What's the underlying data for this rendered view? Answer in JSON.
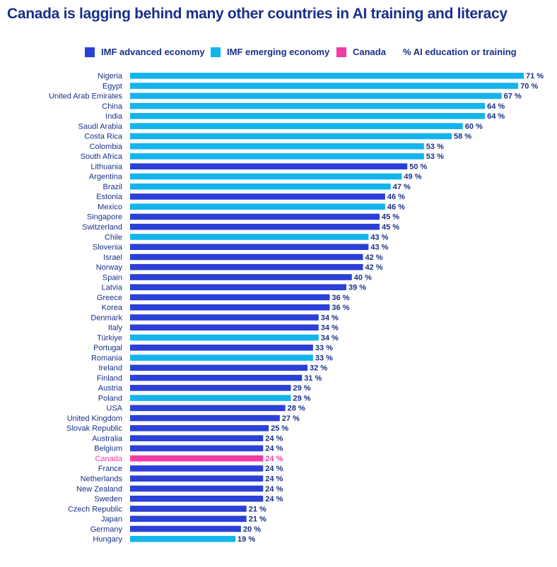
{
  "title": "Canada is lagging behind many other countries in AI training and literacy",
  "legend": [
    {
      "label": "IMF advanced economy",
      "color": "#2b40d6"
    },
    {
      "label": "IMF emerging economy",
      "color": "#13b4ec"
    },
    {
      "label": "Canada",
      "color": "#f43aa3"
    },
    {
      "label": "% AI education or training"
    }
  ],
  "chart_data": {
    "type": "bar",
    "orientation": "horizontal",
    "unit": "%",
    "xlim": [
      0,
      71
    ],
    "grid": false,
    "legend_position": "top",
    "colors": {
      "advanced": "#2b40d6",
      "emerging": "#13b4ec",
      "canada": "#f43aa3"
    },
    "categories": [
      "Nigeria",
      "Egypt",
      "United Arab Emirates",
      "China",
      "India",
      "Saudi Arabia",
      "Costa Rica",
      "Colombia",
      "South Africa",
      "Lithuania",
      "Argentina",
      "Brazil",
      "Estonia",
      "Mexico",
      "Singapore",
      "Switzerland",
      "Chile",
      "Slovenia",
      "Israel",
      "Norway",
      "Spain",
      "Latvia",
      "Greece",
      "Korea",
      "Denmark",
      "Italy",
      "Türkiye",
      "Portugal",
      "Romania",
      "Ireland",
      "Finland",
      "Austria",
      "Poland",
      "USA",
      "United Kingdom",
      "Slovak Republic",
      "Australia",
      "Belgium",
      "Canada",
      "France",
      "Netherlands",
      "New Zealand",
      "Sweden",
      "Czech Republic",
      "Japan",
      "Germany",
      "Hungary"
    ],
    "values": [
      71,
      70,
      67,
      64,
      64,
      60,
      58,
      53,
      53,
      50,
      49,
      47,
      46,
      46,
      45,
      45,
      43,
      43,
      42,
      42,
      40,
      39,
      36,
      36,
      34,
      34,
      34,
      33,
      33,
      32,
      31,
      29,
      29,
      28,
      27,
      25,
      24,
      24,
      24,
      24,
      24,
      24,
      24,
      21,
      21,
      20,
      19
    ],
    "groups": [
      "emerging",
      "emerging",
      "emerging",
      "emerging",
      "emerging",
      "emerging",
      "emerging",
      "emerging",
      "emerging",
      "advanced",
      "emerging",
      "emerging",
      "advanced",
      "emerging",
      "advanced",
      "advanced",
      "emerging",
      "advanced",
      "advanced",
      "advanced",
      "advanced",
      "advanced",
      "advanced",
      "advanced",
      "advanced",
      "advanced",
      "emerging",
      "advanced",
      "emerging",
      "advanced",
      "advanced",
      "advanced",
      "emerging",
      "advanced",
      "advanced",
      "advanced",
      "advanced",
      "advanced",
      "canada",
      "advanced",
      "advanced",
      "advanced",
      "advanced",
      "advanced",
      "advanced",
      "advanced",
      "emerging"
    ],
    "value_labels": [
      "71 %",
      "70 %",
      "67 %",
      "64 %",
      "64 %",
      "60 %",
      "58 %",
      "53 %",
      "53 %",
      "50 %",
      "49 %",
      "47 %",
      "46 %",
      "46 %",
      "45 %",
      "45 %",
      "43 %",
      "43 %",
      "42 %",
      "42 %",
      "40 %",
      "39 %",
      "36 %",
      "36 %",
      "34 %",
      "34 %",
      "34 %",
      "33 %",
      "33 %",
      "32 %",
      "31 %",
      "29 %",
      "29 %",
      "28 %",
      "27 %",
      "25 %",
      "24 %",
      "24 %",
      "24 %",
      "24 %",
      "24 %",
      "24 %",
      "24 %",
      "21 %",
      "21 %",
      "20 %",
      "19 %"
    ]
  }
}
